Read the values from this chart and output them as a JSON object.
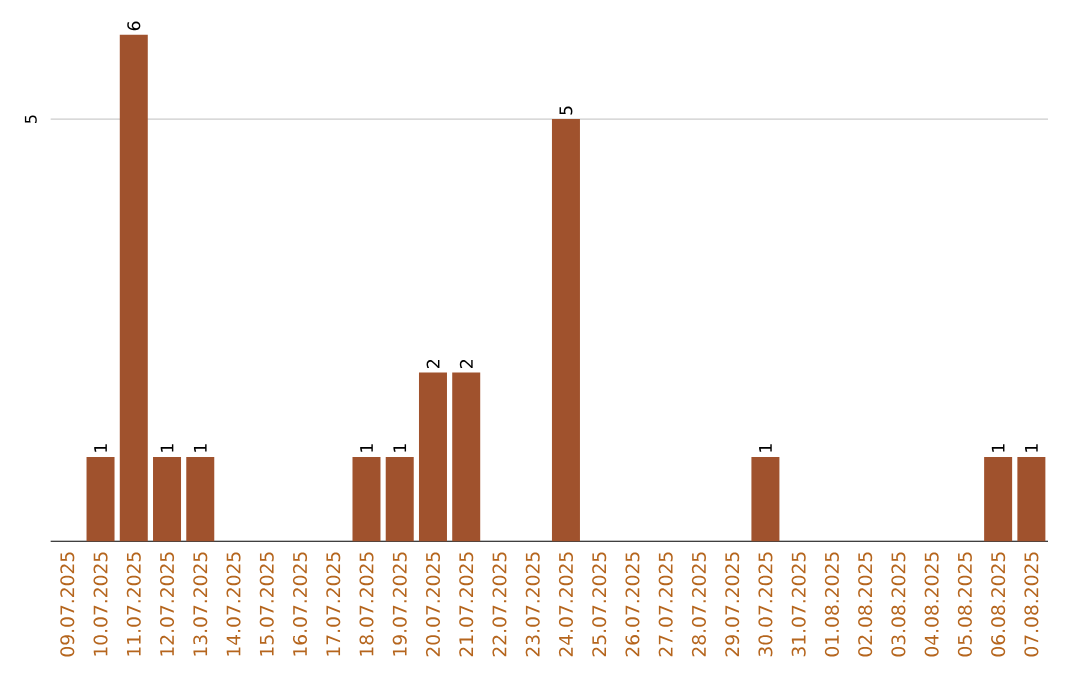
{
  "chart_data": {
    "type": "bar",
    "color": "#a0522d",
    "categories": [
      "09.07.2025",
      "10.07.2025",
      "11.07.2025",
      "12.07.2025",
      "13.07.2025",
      "14.07.2025",
      "15.07.2025",
      "16.07.2025",
      "17.07.2025",
      "18.07.2025",
      "19.07.2025",
      "20.07.2025",
      "21.07.2025",
      "22.07.2025",
      "23.07.2025",
      "24.07.2025",
      "25.07.2025",
      "26.07.2025",
      "27.07.2025",
      "28.07.2025",
      "29.07.2025",
      "30.07.2025",
      "31.07.2025",
      "01.08.2025",
      "02.08.2025",
      "03.08.2025",
      "04.08.2025",
      "05.08.2025",
      "06.08.2025",
      "07.08.2025"
    ],
    "values": [
      0,
      1,
      6,
      1,
      1,
      0,
      0,
      0,
      0,
      1,
      1,
      2,
      2,
      0,
      0,
      5,
      0,
      0,
      0,
      0,
      0,
      1,
      0,
      0,
      0,
      0,
      0,
      0,
      1,
      1
    ],
    "value_labels": [
      null,
      "1",
      "6",
      "1",
      "1",
      null,
      null,
      null,
      null,
      "1",
      "1",
      "2",
      "2",
      null,
      null,
      "5",
      null,
      null,
      null,
      null,
      null,
      "1",
      null,
      null,
      null,
      null,
      null,
      null,
      "1",
      "1"
    ],
    "ref_lines": [
      {
        "axis": "y",
        "value": 5,
        "label": "5",
        "color": "#cccccc"
      }
    ]
  }
}
